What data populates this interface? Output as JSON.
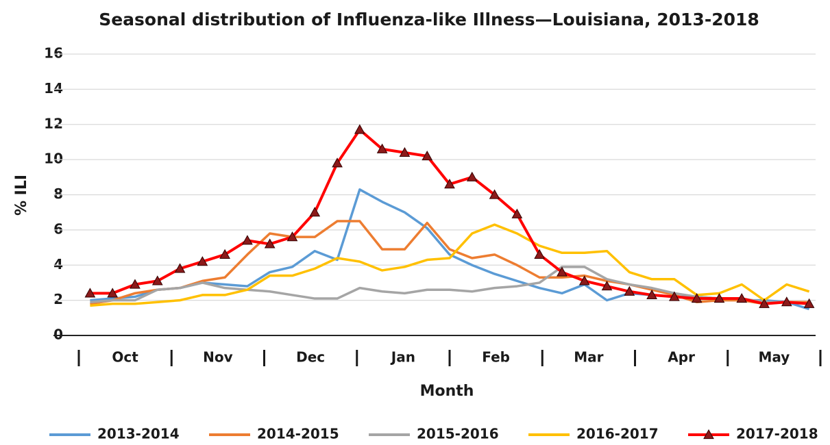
{
  "chart_data": {
    "type": "line",
    "title": "Seasonal distribution of Influenza-like Illness—Louisiana, 2013-2018",
    "x_label": "Month",
    "y_label": "% ILI",
    "months": [
      "Oct",
      "Nov",
      "Dec",
      "Jan",
      "Feb",
      "Mar",
      "Apr",
      "May"
    ],
    "ylim": [
      0,
      16
    ],
    "yticks": [
      0,
      2,
      4,
      6,
      8,
      10,
      12,
      14,
      16
    ],
    "grid": true,
    "legend": "bottom",
    "series": [
      {
        "name": "2013-2014",
        "color": "#5b9bd5",
        "values": [
          2.0,
          2.1,
          2.2,
          2.6,
          2.7,
          3.0,
          2.9,
          2.8,
          3.6,
          3.9,
          4.8,
          4.3,
          8.3,
          7.6,
          7.0,
          6.1,
          4.6,
          4.0,
          3.5,
          3.1,
          2.7,
          2.4,
          2.9,
          2.0,
          2.4,
          2.3,
          2.2,
          2.2,
          2.1,
          2.0,
          2.0,
          1.9,
          1.5
        ]
      },
      {
        "name": "2014-2015",
        "color": "#ed7d31",
        "values": [
          1.8,
          2.0,
          2.4,
          2.6,
          2.7,
          3.1,
          3.3,
          4.6,
          5.8,
          5.6,
          5.6,
          6.5,
          6.5,
          4.9,
          4.9,
          6.4,
          4.9,
          4.4,
          4.6,
          4.0,
          3.3,
          3.3,
          3.4,
          3.1,
          2.9,
          2.6,
          2.3,
          1.9,
          2.0,
          2.0,
          1.8,
          1.9,
          1.9
        ]
      },
      {
        "name": "2015-2016",
        "color": "#a5a5a5",
        "values": [
          1.9,
          2.0,
          2.0,
          2.6,
          2.7,
          3.0,
          2.7,
          2.6,
          2.5,
          2.3,
          2.1,
          2.1,
          2.7,
          2.5,
          2.4,
          2.6,
          2.6,
          2.5,
          2.7,
          2.8,
          3.0,
          3.9,
          3.9,
          3.2,
          2.9,
          2.7,
          2.4,
          2.2,
          2.1,
          2.1,
          1.9,
          1.9,
          1.8
        ]
      },
      {
        "name": "2016-2017",
        "color": "#ffc000",
        "values": [
          1.7,
          1.8,
          1.8,
          1.9,
          2.0,
          2.3,
          2.3,
          2.6,
          3.4,
          3.4,
          3.8,
          4.4,
          4.2,
          3.7,
          3.9,
          4.3,
          4.4,
          5.8,
          6.3,
          5.8,
          5.1,
          4.7,
          4.7,
          4.8,
          3.6,
          3.2,
          3.2,
          2.3,
          2.4,
          2.9,
          2.0,
          2.9,
          2.5
        ]
      },
      {
        "name": "2017-2018",
        "color": "#ff0000",
        "marker": "triangle",
        "values": [
          2.4,
          2.4,
          2.9,
          3.1,
          3.8,
          4.2,
          4.6,
          5.4,
          5.2,
          5.6,
          7.0,
          9.8,
          11.7,
          10.6,
          10.4,
          10.2,
          8.6,
          9.0,
          8.0,
          6.9,
          4.6,
          3.6,
          3.1,
          2.8,
          2.5,
          2.3,
          2.2,
          2.1,
          2.1,
          2.1,
          1.8,
          1.9,
          1.8
        ]
      }
    ]
  }
}
